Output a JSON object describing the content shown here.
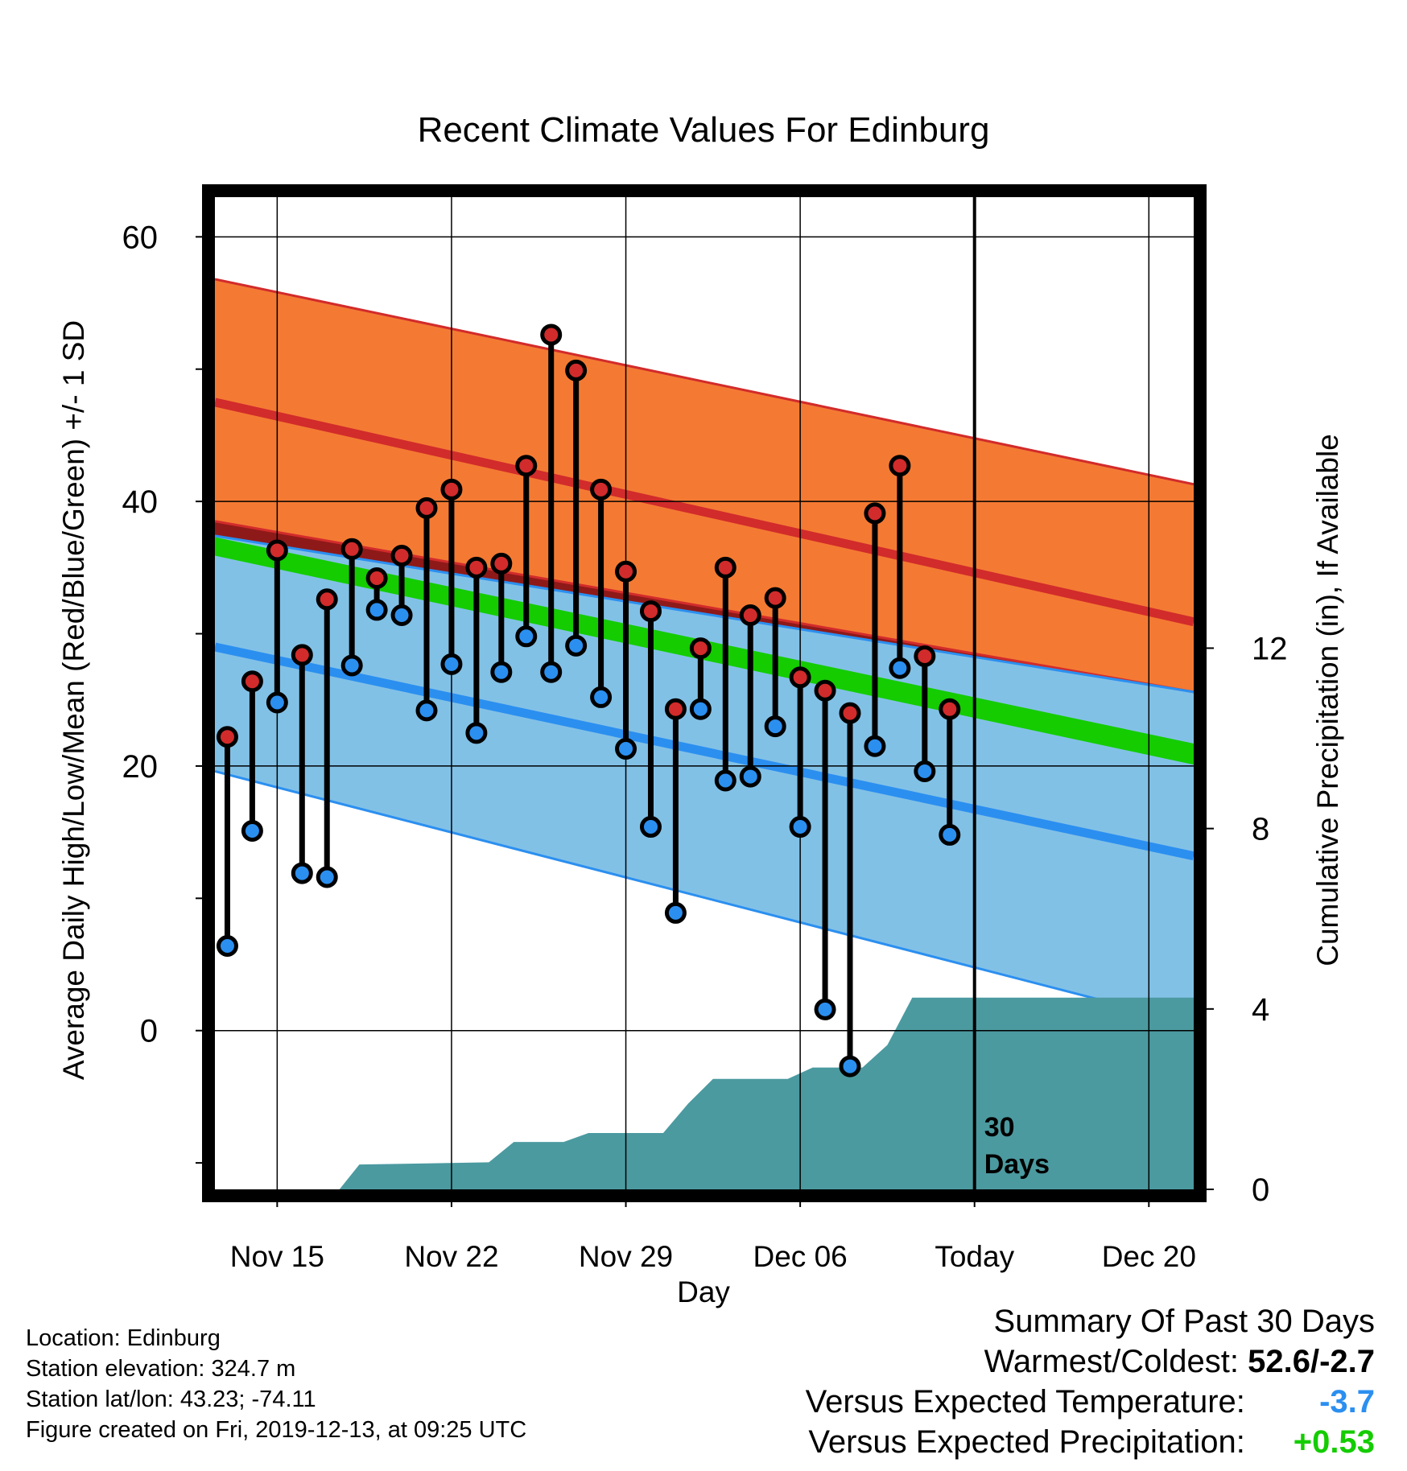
{
  "chart_data": {
    "type": "line",
    "title": "Recent Climate Values For Edinburg",
    "xlabel": "Day",
    "ylabel": "Average Daily High/Low/Mean (Red/Blue/Green) +/- 1 SD",
    "y2label": "Cumulative Precipitation (in), If Available",
    "x_tick_labels": [
      "Nov 15",
      "Nov 22",
      "Nov 29",
      "Dec 06",
      "Today",
      "Dec 20"
    ],
    "x_tick_days": [
      2,
      9,
      16,
      23,
      30,
      37
    ],
    "x_range_days": [
      -0.5,
      38.8
    ],
    "ylim": [
      -12,
      63
    ],
    "y_ticks": [
      0,
      20,
      40,
      60
    ],
    "y_minor_ticks": [
      -10,
      10,
      30,
      50
    ],
    "y2lim": [
      0,
      22
    ],
    "y2_ticks": [
      0,
      4,
      8,
      12
    ],
    "today_label": "30\nDays",
    "today_day": 30,
    "grid": true,
    "colors": {
      "high_band": "#f47a33",
      "high_line": "#d22b2b",
      "low_band": "#82c1e6",
      "low_line": "#2b8ff0",
      "mean_line": "#14cc00",
      "overlap": "#8e1919",
      "precip": "#4b9aa0",
      "high_marker": "#d22b2b",
      "low_marker": "#2b8ff0"
    },
    "normals": {
      "days": [
        -0.5,
        38.8
      ],
      "high_mean": [
        47.5,
        30.9
      ],
      "high_upper": [
        56.8,
        41.3
      ],
      "high_lower": [
        38.5,
        25.6
      ],
      "low_mean": [
        29.0,
        13.2
      ],
      "low_upper": [
        37.4,
        25.6
      ],
      "low_lower": [
        19.6,
        0.5
      ],
      "mean": [
        37.2,
        20.1
      ]
    },
    "series": [
      {
        "name": "Daily Observations",
        "days": [
          0,
          1,
          2,
          3,
          4,
          5,
          6,
          7,
          8,
          9,
          10,
          11,
          12,
          13,
          14,
          15,
          16,
          17,
          18,
          19,
          20,
          21,
          22,
          23,
          24,
          25,
          26,
          27,
          28,
          29
        ],
        "high": [
          22.2,
          26.4,
          36.3,
          28.4,
          32.6,
          36.4,
          34.2,
          35.9,
          39.5,
          40.9,
          35.0,
          35.3,
          42.7,
          52.6,
          49.9,
          40.9,
          34.7,
          31.7,
          24.3,
          28.9,
          35.0,
          31.4,
          32.7,
          26.7,
          25.7,
          24.0,
          39.1,
          42.7,
          28.3,
          24.3
        ],
        "low": [
          6.4,
          15.1,
          24.8,
          11.9,
          11.6,
          27.6,
          31.8,
          31.4,
          24.2,
          27.7,
          22.5,
          27.1,
          29.8,
          27.1,
          29.1,
          25.2,
          21.3,
          15.4,
          8.9,
          24.3,
          18.9,
          19.2,
          23.0,
          15.4,
          1.6,
          -2.7,
          21.5,
          27.4,
          19.6,
          14.8
        ]
      },
      {
        "name": "Cumulative Precipitation",
        "days": [
          4.5,
          5.3,
          10.5,
          11.5,
          13.5,
          14.5,
          17.5,
          18.5,
          19.5,
          22.5,
          23.5,
          25.5,
          26.5,
          27.5,
          38.8
        ],
        "values": [
          0,
          0.55,
          0.6,
          1.05,
          1.05,
          1.25,
          1.25,
          1.9,
          2.45,
          2.45,
          2.7,
          2.7,
          3.2,
          4.25,
          4.25
        ]
      }
    ]
  },
  "info": {
    "location": "Location: Edinburg",
    "elevation": "Station elevation: 324.7 m",
    "latlon": "Station lat/lon: 43.23; -74.11",
    "created": "Figure created on Fri, 2019-12-13, at 09:25 UTC"
  },
  "summary": {
    "title": "Summary Of Past 30 Days",
    "warmest_coldest_label": "Warmest/Coldest:",
    "warmest_coldest_value": "52.6/-2.7",
    "temp_label": "Versus Expected Temperature:",
    "temp_value": "-3.7",
    "temp_color": "#2b8ff0",
    "precip_label": "Versus Expected Precipitation:",
    "precip_value": "+0.53",
    "precip_color": "#14cc00"
  }
}
